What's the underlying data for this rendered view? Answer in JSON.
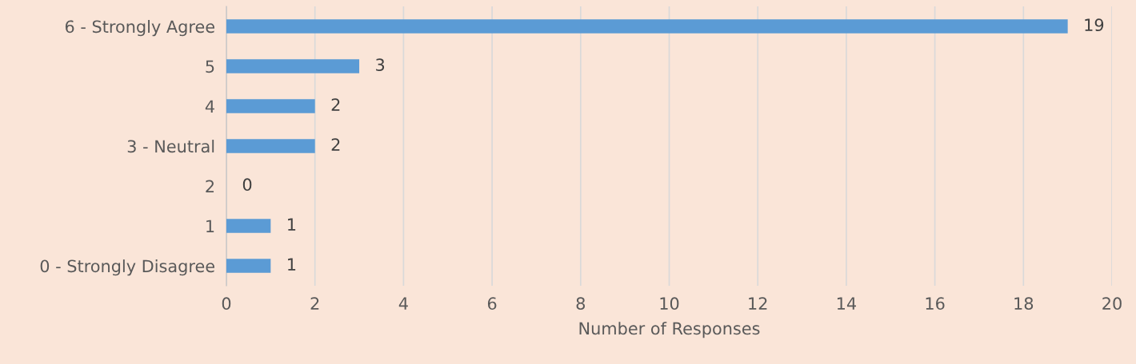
{
  "chart_data": {
    "type": "bar",
    "orientation": "horizontal",
    "categories": [
      "6 - Strongly Agree",
      "5",
      "4",
      "3 - Neutral",
      "2",
      "1",
      "0 - Strongly Disagree"
    ],
    "values": [
      19,
      3,
      2,
      2,
      0,
      1,
      1
    ],
    "color": "#5b9bd5",
    "xlabel": "Number of Responses",
    "xlim": [
      0,
      20
    ],
    "xticks": [
      0,
      2,
      4,
      6,
      8,
      10,
      12,
      14,
      16,
      18,
      20
    ],
    "grid": "x",
    "data_labels": true,
    "legend": false
  }
}
